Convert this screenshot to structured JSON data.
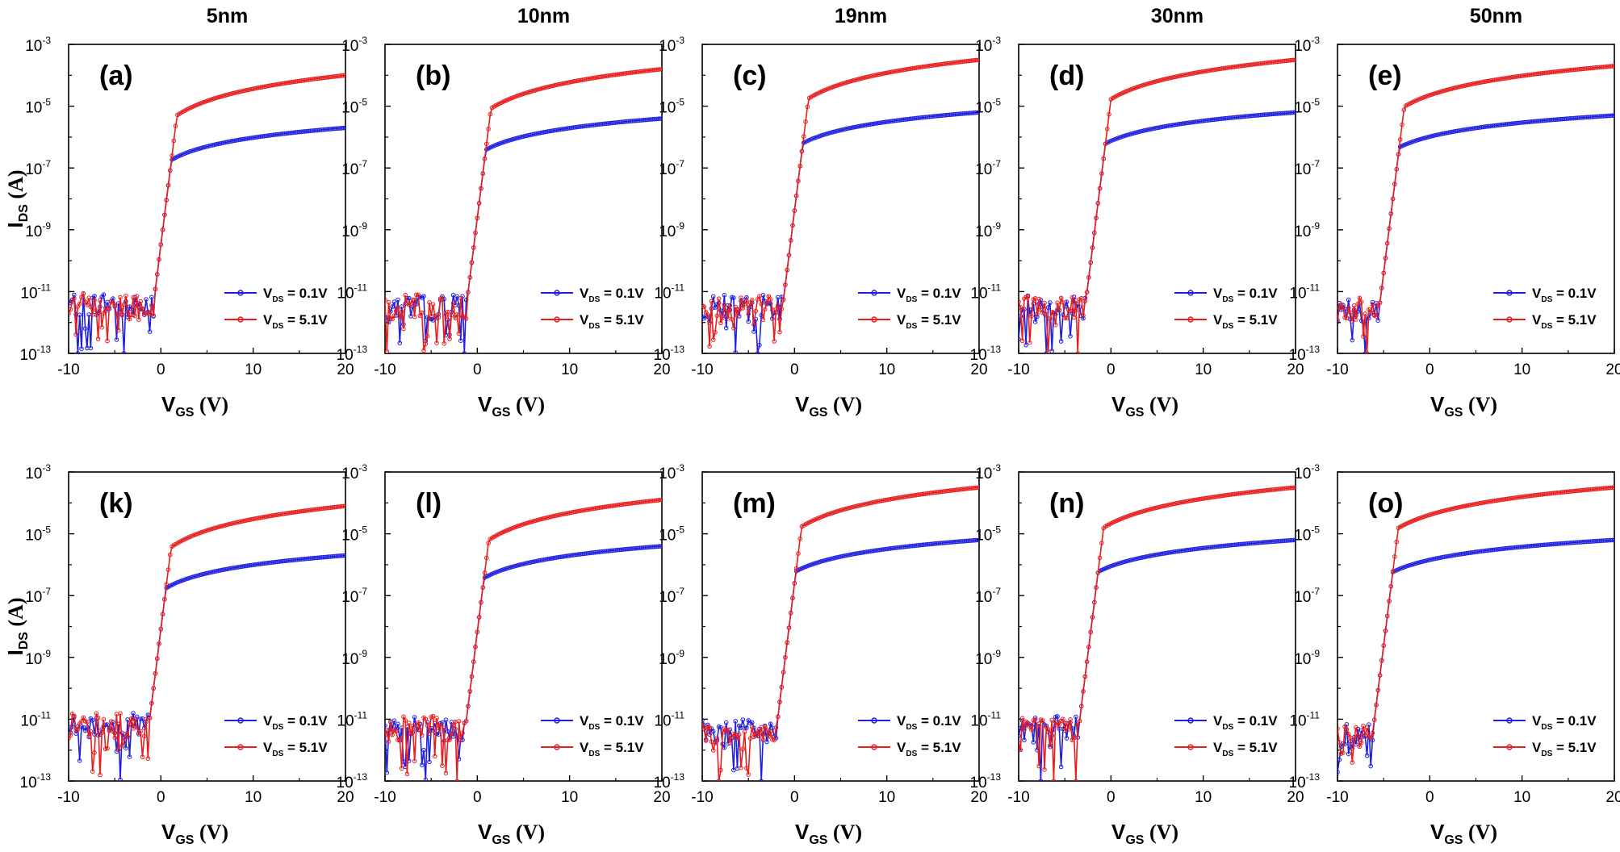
{
  "column_titles": [
    "5nm",
    "10nm",
    "19nm",
    "30nm",
    "50nm"
  ],
  "legend_series_prefix": "V",
  "legend_series_sub": "DS",
  "chart_data": {
    "type": "line",
    "description_free": true,
    "x_axis": {
      "label": "V",
      "label_sub": "GS",
      "unit": " (V)",
      "range": [
        -10,
        20
      ],
      "ticks": [
        -10,
        0,
        10,
        20
      ]
    },
    "y_axis": {
      "label": "I",
      "label_sub": "DS",
      "unit": " (A)",
      "scale": "log",
      "range_exponent": [
        -13,
        -3
      ],
      "tick_exponents": [
        -3,
        -5,
        -7,
        -9,
        -11,
        -13
      ]
    },
    "series_meta": [
      {
        "name": "VDS = 0.1V",
        "legend_value": " = 0.1V",
        "color": "#1f1fe0"
      },
      {
        "name": "VDS = 5.1V",
        "legend_value": " = 5.1V",
        "color": "#e81e1e"
      }
    ],
    "panels": [
      {
        "label": "(a)",
        "thickness": "5nm",
        "vth": [
          -0.8,
          -0.8
        ],
        "noise_floor_exp": -11.4,
        "end_exp": [
          -5.7,
          -4.0
        ]
      },
      {
        "label": "(b)",
        "thickness": "10nm",
        "vth": [
          -1.2,
          -1.2
        ],
        "noise_floor_exp": -11.5,
        "end_exp": [
          -5.4,
          -3.8
        ]
      },
      {
        "label": "(c)",
        "thickness": "19nm",
        "vth": [
          -1.3,
          -1.3
        ],
        "noise_floor_exp": -11.5,
        "end_exp": [
          -5.2,
          -3.5
        ]
      },
      {
        "label": "(d)",
        "thickness": "30nm",
        "vth": [
          -2.8,
          -2.8
        ],
        "noise_floor_exp": -11.5,
        "end_exp": [
          -5.2,
          -3.5
        ]
      },
      {
        "label": "(e)",
        "thickness": "50nm",
        "vth": [
          -5.5,
          -5.5
        ],
        "noise_floor_exp": -11.6,
        "end_exp": [
          -5.3,
          -3.7
        ]
      },
      {
        "label": "(k)",
        "thickness": "5nm",
        "vth": [
          -1.3,
          -1.3
        ],
        "noise_floor_exp": -11.2,
        "end_exp": [
          -5.7,
          -4.1
        ]
      },
      {
        "label": "(l)",
        "thickness": "10nm",
        "vth": [
          -1.3,
          -1.3
        ],
        "noise_floor_exp": -11.3,
        "end_exp": [
          -5.4,
          -3.9
        ]
      },
      {
        "label": "(m)",
        "thickness": "19nm",
        "vth": [
          -2.0,
          -2.0
        ],
        "noise_floor_exp": -11.4,
        "end_exp": [
          -5.2,
          -3.5
        ]
      },
      {
        "label": "(n)",
        "thickness": "30nm",
        "vth": [
          -3.5,
          -3.5
        ],
        "noise_floor_exp": -11.3,
        "end_exp": [
          -5.2,
          -3.5
        ]
      },
      {
        "label": "(o)",
        "thickness": "50nm",
        "vth": [
          -6.2,
          -6.2
        ],
        "noise_floor_exp": -11.5,
        "end_exp": [
          -5.2,
          -3.5
        ]
      }
    ]
  }
}
